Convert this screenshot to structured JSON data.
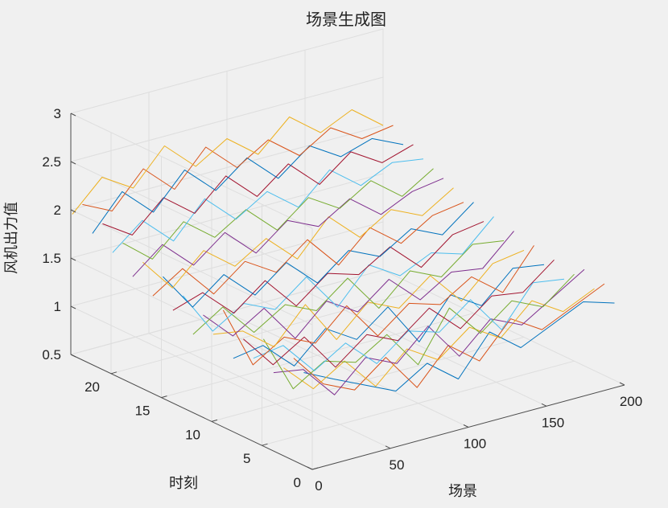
{
  "chart_data": {
    "type": "line",
    "title": "场景生成图",
    "xlabel": "场景",
    "ylabel": "时刻",
    "zlabel": "风机出力值",
    "xlim": [
      0,
      200
    ],
    "ylim": [
      0,
      24
    ],
    "zlim": [
      0.5,
      3
    ],
    "x_ticks": [
      "0",
      "50",
      "100",
      "150",
      "200"
    ],
    "y_ticks": [
      "0",
      "5",
      "10",
      "15",
      "20"
    ],
    "z_ticks": [
      "0.5",
      "1",
      "1.5",
      "2",
      "2.5",
      "3"
    ],
    "grid": true,
    "series_count": 24,
    "series_colors": [
      "#0072BD",
      "#D95319",
      "#EDB120",
      "#7E2F8E",
      "#77AC30",
      "#4DBEEE",
      "#A2142F"
    ],
    "series": [
      {
        "time": 1,
        "x": [
          1,
          20,
          40,
          60,
          80,
          100,
          120,
          140,
          160,
          180,
          200
        ],
        "values": [
          1.45,
          1.3,
          1.15,
          1.0,
          1.2,
          0.95,
          1.35,
          1.1,
          1.25,
          1.4,
          1.3
        ]
      },
      {
        "time": 2,
        "x": [
          1,
          20,
          40,
          60,
          80,
          100,
          120,
          140,
          160,
          180,
          200
        ],
        "values": [
          1.55,
          1.2,
          1.05,
          1.3,
          0.9,
          1.25,
          1.0,
          1.35,
          1.15,
          1.3,
          1.45
        ]
      },
      {
        "time": 3,
        "x": [
          1,
          20,
          40,
          60,
          80,
          100,
          120,
          140,
          160,
          180,
          200
        ],
        "values": [
          1.4,
          1.1,
          1.3,
          0.95,
          1.25,
          1.05,
          1.3,
          1.1,
          1.4,
          1.2,
          1.35
        ]
      },
      {
        "time": 4,
        "x": [
          1,
          20,
          40,
          60,
          80,
          100,
          120,
          140,
          160,
          180,
          200
        ],
        "values": [
          1.3,
          1.25,
          0.9,
          1.2,
          1.05,
          1.35,
          0.95,
          1.25,
          1.1,
          1.3,
          1.5
        ]
      },
      {
        "time": 5,
        "x": [
          1,
          20,
          40,
          60,
          80,
          100,
          120,
          140,
          160,
          180,
          200
        ],
        "values": [
          1.6,
          1.0,
          1.2,
          1.1,
          1.3,
          0.9,
          1.4,
          1.05,
          1.3,
          1.15,
          1.4
        ]
      },
      {
        "time": 6,
        "x": [
          1,
          20,
          40,
          60,
          80,
          100,
          120,
          140,
          160,
          180,
          200
        ],
        "values": [
          1.35,
          1.4,
          1.05,
          1.25,
          0.95,
          1.2,
          1.1,
          1.35,
          0.95,
          1.35,
          1.3
        ]
      },
      {
        "time": 7,
        "x": [
          1,
          20,
          40,
          60,
          80,
          100,
          120,
          140,
          160,
          180,
          200
        ],
        "values": [
          1.5,
          1.15,
          1.35,
          0.95,
          1.2,
          1.05,
          1.3,
          1.0,
          1.25,
          1.2,
          1.45
        ]
      },
      {
        "time": 8,
        "x": [
          1,
          20,
          40,
          60,
          80,
          100,
          120,
          140,
          160,
          180,
          200
        ],
        "values": [
          1.25,
          1.3,
          1.0,
          1.3,
          1.1,
          1.35,
          0.9,
          1.3,
          1.1,
          1.4,
          1.35
        ]
      },
      {
        "time": 9,
        "x": [
          1,
          20,
          40,
          60,
          80,
          100,
          120,
          140,
          160,
          180,
          200
        ],
        "values": [
          1.7,
          1.05,
          1.25,
          1.1,
          1.4,
          1.0,
          1.25,
          1.15,
          1.35,
          1.1,
          1.5
        ]
      },
      {
        "time": 10,
        "x": [
          1,
          20,
          40,
          60,
          80,
          100,
          120,
          140,
          160,
          180,
          200
        ],
        "values": [
          1.4,
          1.35,
          1.1,
          1.45,
          1.0,
          1.3,
          1.15,
          1.4,
          1.05,
          1.35,
          1.4
        ]
      },
      {
        "time": 11,
        "x": [
          1,
          20,
          40,
          60,
          80,
          100,
          120,
          140,
          160,
          180,
          200
        ],
        "values": [
          1.55,
          1.25,
          1.45,
          1.05,
          1.35,
          1.15,
          1.4,
          1.1,
          1.3,
          1.25,
          1.55
        ]
      },
      {
        "time": 12,
        "x": [
          1,
          20,
          40,
          60,
          80,
          100,
          120,
          140,
          160,
          180,
          200
        ],
        "values": [
          1.3,
          1.5,
          1.15,
          1.35,
          1.2,
          1.45,
          1.05,
          1.35,
          1.2,
          1.45,
          1.4
        ]
      },
      {
        "time": 13,
        "x": [
          1,
          20,
          40,
          60,
          80,
          100,
          120,
          140,
          160,
          180,
          200
        ],
        "values": [
          1.65,
          1.2,
          1.4,
          1.25,
          1.5,
          1.1,
          1.45,
          1.25,
          1.4,
          1.3,
          1.6
        ]
      },
      {
        "time": 14,
        "x": [
          1,
          20,
          40,
          60,
          80,
          100,
          120,
          140,
          160,
          180,
          200
        ],
        "values": [
          1.45,
          1.55,
          1.25,
          1.5,
          1.15,
          1.4,
          1.3,
          1.5,
          1.2,
          1.45,
          1.5
        ]
      },
      {
        "time": 15,
        "x": [
          1,
          20,
          40,
          60,
          80,
          100,
          120,
          140,
          160,
          180,
          200
        ],
        "values": [
          1.75,
          1.35,
          1.6,
          1.3,
          1.55,
          1.25,
          1.5,
          1.35,
          1.55,
          1.4,
          1.65
        ]
      },
      {
        "time": 16,
        "x": [
          1,
          20,
          40,
          60,
          80,
          100,
          120,
          140,
          160,
          180,
          200
        ],
        "values": [
          1.5,
          1.7,
          1.35,
          1.6,
          1.4,
          1.65,
          1.3,
          1.6,
          1.35,
          1.55,
          1.6
        ]
      },
      {
        "time": 17,
        "x": [
          1,
          20,
          40,
          60,
          80,
          100,
          120,
          140,
          160,
          180,
          200
        ],
        "values": [
          1.8,
          1.45,
          1.75,
          1.5,
          1.7,
          1.4,
          1.75,
          1.45,
          1.65,
          1.5,
          1.7
        ]
      },
      {
        "time": 18,
        "x": [
          1,
          20,
          40,
          60,
          80,
          100,
          120,
          140,
          160,
          180,
          200
        ],
        "values": [
          1.6,
          1.85,
          1.55,
          1.8,
          1.5,
          1.75,
          1.6,
          1.8,
          1.55,
          1.7,
          1.75
        ]
      },
      {
        "time": 19,
        "x": [
          1,
          20,
          40,
          60,
          80,
          100,
          120,
          140,
          160,
          180,
          200
        ],
        "values": [
          1.9,
          1.65,
          1.95,
          1.7,
          1.9,
          1.6,
          1.85,
          1.65,
          1.85,
          1.6,
          1.8
        ]
      },
      {
        "time": 20,
        "x": [
          1,
          20,
          40,
          60,
          80,
          100,
          120,
          140,
          160,
          180,
          200
        ],
        "values": [
          1.75,
          2.0,
          1.7,
          2.05,
          1.75,
          1.95,
          1.7,
          2.0,
          1.75,
          1.9,
          1.85
        ]
      },
      {
        "time": 21,
        "x": [
          1,
          20,
          40,
          60,
          80,
          100,
          120,
          140,
          160,
          180,
          200
        ],
        "values": [
          2.0,
          1.8,
          2.1,
          1.85,
          2.15,
          1.85,
          2.1,
          1.8,
          2.05,
          1.85,
          1.95
        ]
      },
      {
        "time": 22,
        "x": [
          1,
          20,
          40,
          60,
          80,
          100,
          120,
          140,
          160,
          180,
          200
        ],
        "values": [
          1.85,
          2.2,
          1.9,
          2.25,
          1.95,
          2.2,
          1.9,
          2.15,
          1.95,
          2.05,
          1.9
        ]
      },
      {
        "time": 23,
        "x": [
          1,
          20,
          40,
          60,
          80,
          100,
          120,
          140,
          160,
          180,
          200
        ],
        "values": [
          2.1,
          1.95,
          2.3,
          2.0,
          2.35,
          2.05,
          2.25,
          2.0,
          2.2,
          2.0,
          2.05
        ]
      },
      {
        "time": 24,
        "x": [
          1,
          20,
          40,
          60,
          80,
          100,
          120,
          140,
          160,
          180,
          200
        ],
        "values": [
          1.95,
          2.25,
          2.05,
          2.4,
          2.1,
          2.3,
          2.05,
          2.35,
          2.1,
          2.25,
          2.0
        ]
      }
    ]
  }
}
